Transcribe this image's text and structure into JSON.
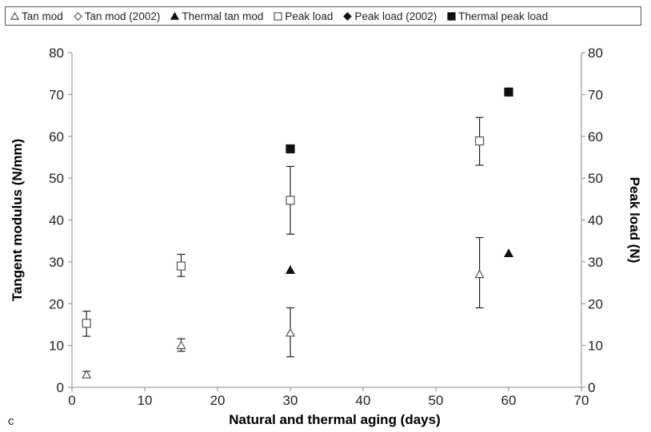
{
  "panel_label": "c",
  "chart_data": {
    "type": "scatter",
    "xlabel": "Natural and thermal aging (days)",
    "ylabel": "Tangent modulus (N/mm)",
    "y2label": "Peak load (N)",
    "xlim": [
      0,
      70
    ],
    "ylim": [
      0,
      80
    ],
    "y2lim": [
      0,
      80
    ],
    "x_ticks": [
      "0",
      "10",
      "20",
      "30",
      "40",
      "50",
      "60",
      "70"
    ],
    "y_ticks": [
      "0",
      "10",
      "20",
      "30",
      "40",
      "50",
      "60",
      "70",
      "80"
    ],
    "y2_ticks": [
      "0",
      "10",
      "20",
      "30",
      "40",
      "50",
      "60",
      "70",
      "80"
    ],
    "grid": false,
    "legend_position": "top",
    "legend": [
      {
        "label": "Tan mod",
        "marker": "triangle-open"
      },
      {
        "label": "Tan mod (2002)",
        "marker": "diamond-open"
      },
      {
        "label": "Thermal tan mod",
        "marker": "triangle-filled"
      },
      {
        "label": "Peak load",
        "marker": "square-open"
      },
      {
        "label": "Peak load (2002)",
        "marker": "diamond-filled"
      },
      {
        "label": "Thermal peak load",
        "marker": "square-filled"
      }
    ],
    "series": [
      {
        "name": "Tan mod",
        "marker": "triangle-open",
        "points": [
          {
            "x": 2,
            "y": 3,
            "err_low": 2.3,
            "err_high": 3.8
          },
          {
            "x": 15,
            "y": 10,
            "err_low": 8.6,
            "err_high": 11.6
          },
          {
            "x": 30,
            "y": 13,
            "err_low": 7.3,
            "err_high": 19
          },
          {
            "x": 56,
            "y": 27,
            "err_low": 19,
            "err_high": 35.8
          }
        ]
      },
      {
        "name": "Tan mod (2002)",
        "marker": "diamond-open",
        "points": []
      },
      {
        "name": "Thermal tan mod",
        "marker": "triangle-filled",
        "points": [
          {
            "x": 30,
            "y": 28
          },
          {
            "x": 60,
            "y": 32
          }
        ]
      },
      {
        "name": "Peak load",
        "marker": "square-open",
        "points": [
          {
            "x": 2,
            "y": 15.3,
            "err_low": 12.2,
            "err_high": 18.2
          },
          {
            "x": 15,
            "y": 29,
            "err_low": 26.5,
            "err_high": 31.8
          },
          {
            "x": 30,
            "y": 44.7,
            "err_low": 36.6,
            "err_high": 52.8
          },
          {
            "x": 56,
            "y": 58.9,
            "err_low": 53.1,
            "err_high": 64.5
          }
        ]
      },
      {
        "name": "Peak load (2002)",
        "marker": "diamond-filled",
        "points": [
          {
            "x": 30,
            "y": 57
          },
          {
            "x": 60,
            "y": 70.6
          }
        ]
      },
      {
        "name": "Thermal peak load",
        "marker": "square-filled",
        "points": [
          {
            "x": 30,
            "y": 57
          },
          {
            "x": 60,
            "y": 70.6
          }
        ]
      }
    ]
  }
}
